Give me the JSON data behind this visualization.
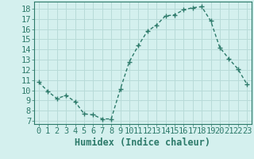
{
  "x": [
    0,
    1,
    2,
    3,
    4,
    5,
    6,
    7,
    8,
    9,
    10,
    11,
    12,
    13,
    14,
    15,
    16,
    17,
    18,
    19,
    20,
    21,
    22,
    23
  ],
  "y": [
    10.8,
    9.9,
    9.2,
    9.5,
    8.9,
    7.7,
    7.6,
    7.2,
    7.2,
    10.1,
    12.8,
    14.4,
    15.8,
    16.4,
    17.3,
    17.4,
    17.9,
    18.1,
    18.2,
    16.8,
    14.2,
    13.1,
    12.1,
    10.6
  ],
  "line_color": "#2d7a6a",
  "marker": "+",
  "bg_color": "#d4f0ee",
  "grid_color": "#b8dbd8",
  "xlabel": "Humidex (Indice chaleur)",
  "ylabel_ticks": [
    7,
    8,
    9,
    10,
    11,
    12,
    13,
    14,
    15,
    16,
    17,
    18
  ],
  "ylim": [
    6.7,
    18.7
  ],
  "xlim": [
    -0.5,
    23.5
  ],
  "tick_fontsize": 7.5,
  "line_width": 1.0,
  "marker_size": 4,
  "marker_edge_width": 1.0
}
